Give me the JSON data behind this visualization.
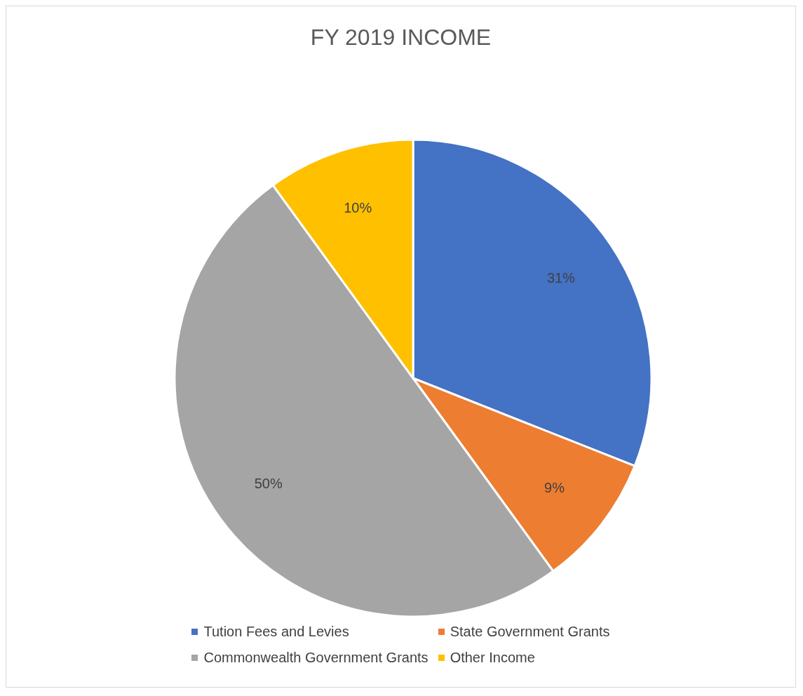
{
  "chart_data": {
    "type": "pie",
    "title": "FY 2019 INCOME",
    "categories": [
      "Tution Fees and Levies",
      "State Government Grants",
      "Commonwealth Government Grants",
      "Other Income"
    ],
    "values": [
      31,
      9,
      50,
      10
    ],
    "colors": [
      "#4472c4",
      "#ed7d31",
      "#a5a5a5",
      "#ffc000"
    ],
    "value_labels": [
      "31%",
      "9%",
      "50%",
      "10%"
    ],
    "legend": "bottom"
  }
}
